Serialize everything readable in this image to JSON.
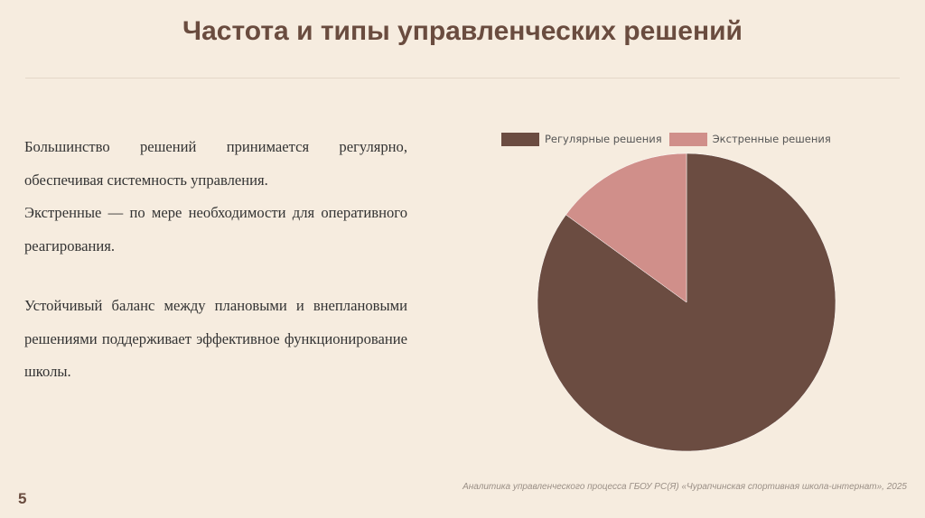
{
  "slide": {
    "title": "Частота и типы управленческих решений",
    "paragraphs": [
      "Большинство решений принимается регулярно, обеспечивая системность управления.",
      "Экстренные — по мере необходимости для оперативного реагирования.",
      "Устойчивый баланс между плановыми и внеплановыми решениями поддерживает эффективное функционирование школы."
    ],
    "footer": "Аналитика управленческого процесса ГБОУ РС(Я) «Чурапчинская спортивная школа-интернат», 2025",
    "page_number": "5"
  },
  "chart_data": {
    "type": "pie",
    "legend_position": "top",
    "series": [
      {
        "name": "Регулярные решения",
        "value": 85,
        "color": "#6b4c41"
      },
      {
        "name": "Экстренные решения",
        "value": 15,
        "color": "#d08f8a"
      }
    ]
  }
}
